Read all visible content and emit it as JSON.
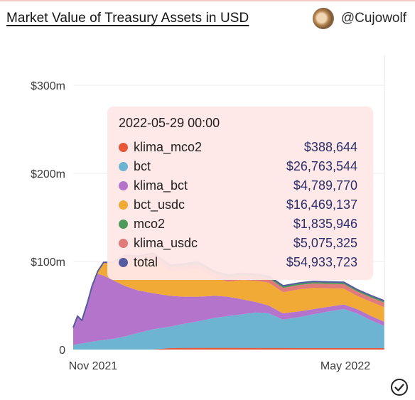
{
  "header": {
    "title": "Market Value of Treasury Assets in USD",
    "author": "@Cujowolf"
  },
  "icons": {
    "avatar": "avatar-image",
    "check": "check-circle-icon"
  },
  "chart_data": {
    "type": "area",
    "stacked": true,
    "yticks": [
      "0",
      "$100m",
      "$200m",
      "$300m"
    ],
    "ylim": [
      0,
      300000000
    ],
    "xticks": [
      "Nov 2021",
      "May 2022"
    ],
    "x": [
      "2021-10-26",
      "2021-10-29",
      "2021-11-01",
      "2021-11-05",
      "2021-11-08",
      "2021-11-12",
      "2021-11-16",
      "2021-11-22",
      "2021-12-01",
      "2021-12-10",
      "2021-12-20",
      "2022-01-01",
      "2022-01-10",
      "2022-01-20",
      "2022-02-01",
      "2022-02-10",
      "2022-02-20",
      "2022-03-01",
      "2022-03-10",
      "2022-03-20",
      "2022-04-01",
      "2022-04-10",
      "2022-04-20",
      "2022-05-01",
      "2022-05-10",
      "2022-05-20",
      "2022-05-29"
    ],
    "series": [
      {
        "name": "klima_mco2",
        "color": "#e8563a",
        "values": [
          0,
          0,
          0,
          0,
          0,
          0,
          0,
          0,
          0,
          0,
          0,
          300000,
          500000,
          600000,
          600000,
          600000,
          600000,
          500000,
          500000,
          500000,
          450000,
          450000,
          450000,
          420000,
          400000,
          400000,
          388644
        ]
      },
      {
        "name": "bct",
        "color": "#6cb4d2",
        "values": [
          5000000,
          6000000,
          7000000,
          8000000,
          9000000,
          10000000,
          11000000,
          12000000,
          15000000,
          19000000,
          23000000,
          26000000,
          29000000,
          32000000,
          36000000,
          38000000,
          40000000,
          42000000,
          41000000,
          34000000,
          37000000,
          40000000,
          43000000,
          46000000,
          41000000,
          33000000,
          26763544
        ]
      },
      {
        "name": "klima_bct",
        "color": "#b574cc",
        "values": [
          20000000,
          32000000,
          26000000,
          46000000,
          62000000,
          76000000,
          73000000,
          67000000,
          57000000,
          48000000,
          41000000,
          35000000,
          31000000,
          28000000,
          25000000,
          22000000,
          17000000,
          12000000,
          9000000,
          7000000,
          6500000,
          6000000,
          5500000,
          5200000,
          5000000,
          4900000,
          4789770
        ]
      },
      {
        "name": "bct_usdc",
        "color": "#f0aa35",
        "values": [
          0,
          0,
          0,
          0,
          1000000,
          3000000,
          15000000,
          20000000,
          32000000,
          35000000,
          40000000,
          28000000,
          30000000,
          32000000,
          20000000,
          17000000,
          22000000,
          24000000,
          26000000,
          24000000,
          25000000,
          24000000,
          21000000,
          18000000,
          15000000,
          16000000,
          16469137
        ]
      },
      {
        "name": "mco2",
        "color": "#4e9a5b",
        "values": [
          0,
          0,
          0,
          0,
          0,
          0,
          0,
          0,
          1000000,
          1000000,
          1500000,
          2000000,
          2000000,
          2000000,
          2000000,
          2000000,
          2000000,
          2000000,
          1900000,
          1900000,
          1900000,
          1900000,
          1900000,
          1800000,
          1800000,
          1800000,
          1835946
        ]
      },
      {
        "name": "klima_usdc",
        "color": "#e07b7b",
        "values": [
          0,
          0,
          0,
          0,
          0,
          0,
          0,
          0,
          2000000,
          3000000,
          4000000,
          4500000,
          4500000,
          5000000,
          5000000,
          5000000,
          5000000,
          5000000,
          5000000,
          5000000,
          5000000,
          5000000,
          5000000,
          5000000,
          5000000,
          5000000,
          5075325
        ]
      }
    ],
    "total": {
      "name": "total",
      "color": "#565a9f"
    },
    "tooltip": {
      "date": "2022-05-29 00:00",
      "rows": [
        {
          "name": "klima_mco2",
          "value": "$388,644",
          "color": "#e8563a"
        },
        {
          "name": "bct",
          "value": "$26,763,544",
          "color": "#6cb4d2"
        },
        {
          "name": "klima_bct",
          "value": "$4,789,770",
          "color": "#b574cc"
        },
        {
          "name": "bct_usdc",
          "value": "$16,469,137",
          "color": "#f0aa35"
        },
        {
          "name": "mco2",
          "value": "$1,835,946",
          "color": "#4e9a5b"
        },
        {
          "name": "klima_usdc",
          "value": "$5,075,325",
          "color": "#e07b7b"
        },
        {
          "name": "total",
          "value": "$54,933,723",
          "color": "#565a9f"
        }
      ]
    }
  }
}
